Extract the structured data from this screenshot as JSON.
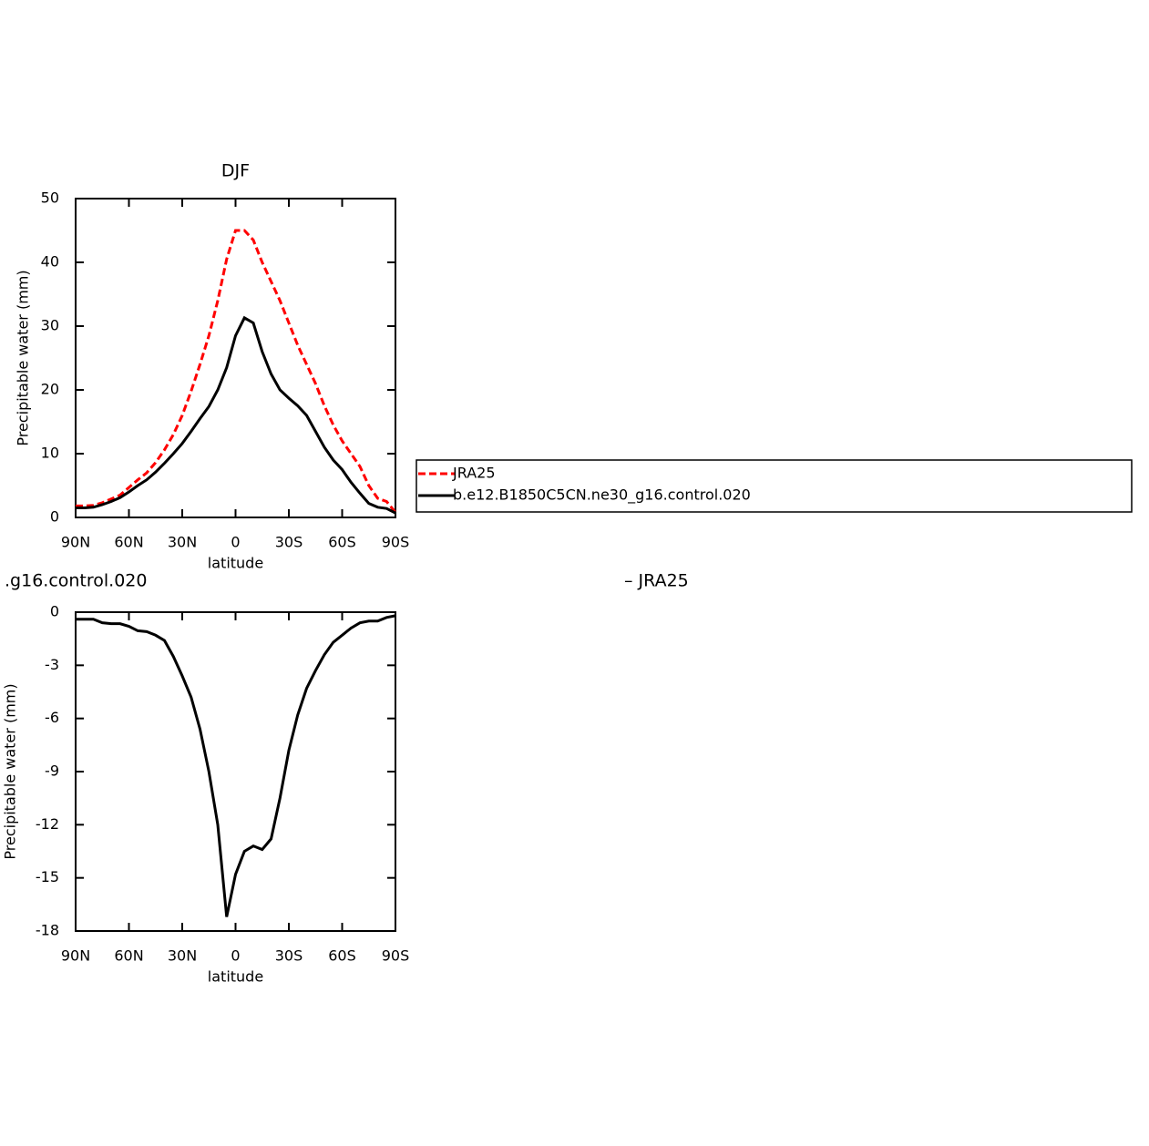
{
  "chart_data": [
    {
      "type": "line",
      "title": "DJF",
      "xlabel": "latitude",
      "ylabel": "Precipitable water (mm)",
      "x": [
        90,
        85,
        80,
        75,
        70,
        65,
        60,
        55,
        50,
        45,
        40,
        35,
        30,
        25,
        20,
        15,
        10,
        5,
        0,
        -5,
        -10,
        -15,
        -20,
        -25,
        -30,
        -35,
        -40,
        -45,
        -50,
        -55,
        -60,
        -65,
        -70,
        -75,
        -80,
        -85,
        -90
      ],
      "xlim": [
        90,
        -90
      ],
      "xticks": [
        {
          "value": 90,
          "label": "90N"
        },
        {
          "value": 60,
          "label": "60N"
        },
        {
          "value": 30,
          "label": "30N"
        },
        0,
        {
          "value": -30,
          "label": "30S"
        },
        {
          "value": -60,
          "label": "60S"
        },
        {
          "value": -90,
          "label": "90S"
        }
      ],
      "ylim": [
        0,
        50
      ],
      "yticks": [
        0,
        10,
        20,
        30,
        40,
        50
      ],
      "legend": "right",
      "series": [
        {
          "name": "JRA25",
          "color": "#ff0000",
          "dash": "dashed",
          "values": [
            1.8,
            1.8,
            1.9,
            2.3,
            2.9,
            3.5,
            4.7,
            5.9,
            7.0,
            8.6,
            10.6,
            13.0,
            16.0,
            19.8,
            24.0,
            28.5,
            34.0,
            40.5,
            45.0,
            45.0,
            43.5,
            40.0,
            37.0,
            34.0,
            30.5,
            27.0,
            24.0,
            21.0,
            17.5,
            14.5,
            12.0,
            10.0,
            8.0,
            5.0,
            3.0,
            2.5,
            0.8
          ]
        },
        {
          "name": "b.e12.B1850C5CN.ne30_g16.control.020",
          "color": "#000000",
          "dash": "solid",
          "values": [
            1.5,
            1.5,
            1.6,
            2.0,
            2.5,
            3.1,
            4.0,
            5.0,
            5.9,
            7.1,
            8.5,
            10.0,
            11.6,
            13.5,
            15.5,
            17.4,
            20.0,
            23.5,
            28.5,
            31.3,
            30.5,
            26.0,
            22.5,
            20.0,
            18.7,
            17.5,
            16.0,
            13.5,
            11.0,
            9.0,
            7.5,
            5.5,
            3.8,
            2.2,
            1.6,
            1.4,
            0.7
          ]
        }
      ]
    },
    {
      "type": "line",
      "title_parts": [
        ".g16.control.020",
        "– JRA25"
      ],
      "xlabel": "latitude",
      "ylabel": "Precipitable water (mm)",
      "x": [
        90,
        85,
        80,
        75,
        70,
        65,
        60,
        55,
        50,
        45,
        40,
        35,
        30,
        25,
        20,
        15,
        10,
        5,
        0,
        -5,
        -10,
        -15,
        -20,
        -25,
        -30,
        -35,
        -40,
        -45,
        -50,
        -55,
        -60,
        -65,
        -70,
        -75,
        -80,
        -85,
        -90
      ],
      "xlim": [
        90,
        -90
      ],
      "xticks": [
        {
          "value": 90,
          "label": "90N"
        },
        {
          "value": 60,
          "label": "60N"
        },
        {
          "value": 30,
          "label": "30N"
        },
        0,
        {
          "value": -30,
          "label": "30S"
        },
        {
          "value": -60,
          "label": "60S"
        },
        {
          "value": -90,
          "label": "90S"
        }
      ],
      "ylim": [
        -18,
        0
      ],
      "yticks": [
        -18,
        -15,
        -12,
        -9,
        -6,
        -3,
        0
      ],
      "series": [
        {
          "color": "#000000",
          "dash": "solid",
          "values": [
            -0.4,
            -0.4,
            -0.4,
            -0.6,
            -0.65,
            -0.65,
            -0.8,
            -1.05,
            -1.1,
            -1.3,
            -1.6,
            -2.5,
            -3.6,
            -4.8,
            -6.6,
            -9.0,
            -12.0,
            -17.2,
            -14.8,
            -13.5,
            -13.2,
            -13.4,
            -12.8,
            -10.5,
            -7.8,
            -5.8,
            -4.3,
            -3.3,
            -2.4,
            -1.7,
            -1.3,
            -0.9,
            -0.6,
            -0.5,
            -0.5,
            -0.3,
            -0.2
          ]
        }
      ]
    }
  ]
}
